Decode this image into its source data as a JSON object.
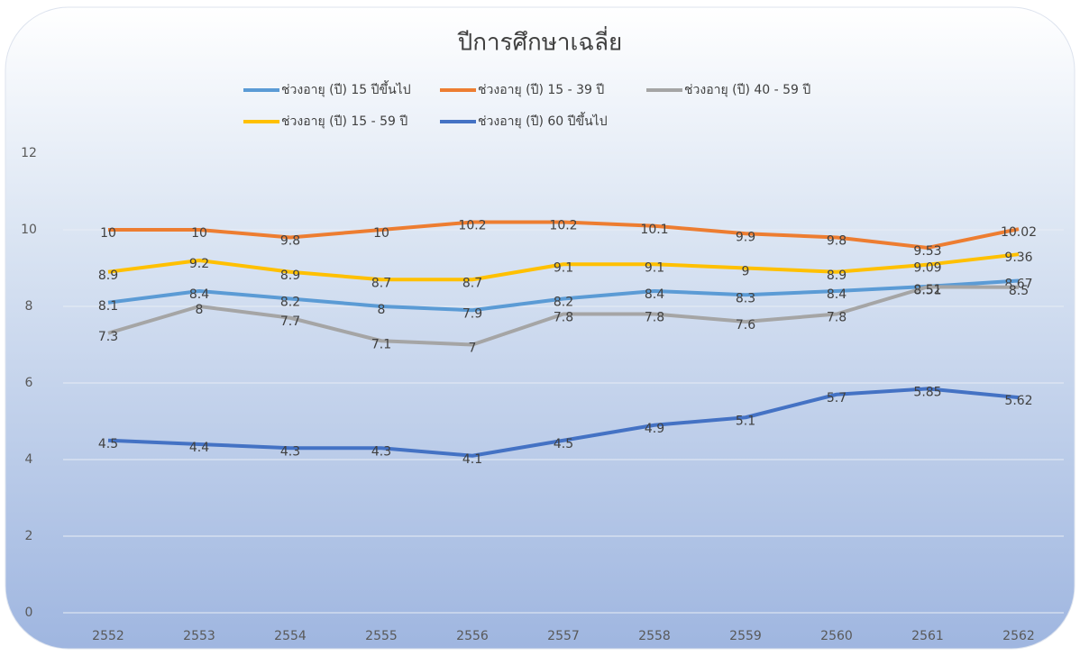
{
  "chart_data": {
    "type": "line",
    "title": "ปีการศึกษาเฉลี่ย",
    "categories": [
      "2552",
      "2553",
      "2554",
      "2555",
      "2556",
      "2557",
      "2558",
      "2559",
      "2560",
      "2561",
      "2562"
    ],
    "series": [
      {
        "name": "ช่วงอายุ (ปี) 15 ปีขึ้นไป",
        "color": "#5b9bd5",
        "values": [
          8.1,
          8.4,
          8.2,
          8,
          7.9,
          8.2,
          8.4,
          8.3,
          8.4,
          8.52,
          8.67
        ]
      },
      {
        "name": "ช่วงอายุ (ปี) 15 - 39 ปี",
        "color": "#ed7d31",
        "values": [
          10,
          10,
          9.8,
          10,
          10.2,
          10.2,
          10.1,
          9.9,
          9.8,
          9.53,
          10.02
        ]
      },
      {
        "name": "ช่วงอายุ (ปี) 40 - 59 ปี",
        "color": "#a5a5a5",
        "values": [
          7.3,
          8,
          7.7,
          7.1,
          7,
          7.8,
          7.8,
          7.6,
          7.8,
          8.51,
          8.5
        ]
      },
      {
        "name": "ช่วงอายุ (ปี) 15 - 59 ปี",
        "color": "#ffc000",
        "values": [
          8.9,
          9.2,
          8.9,
          8.7,
          8.7,
          9.1,
          9.1,
          9,
          8.9,
          9.09,
          9.36
        ]
      },
      {
        "name": "ช่วงอายุ (ปี) 60 ปีขึ้นไป",
        "color": "#4472c4",
        "values": [
          4.5,
          4.4,
          4.3,
          4.3,
          4.1,
          4.5,
          4.9,
          5.1,
          5.7,
          5.85,
          5.62
        ]
      }
    ],
    "ylim": [
      0,
      12
    ],
    "yticks": [
      0,
      2,
      4,
      6,
      8,
      10,
      12
    ],
    "grid": true
  }
}
